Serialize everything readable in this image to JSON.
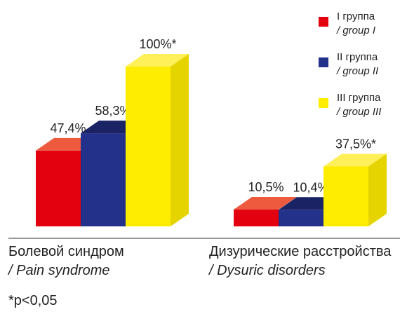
{
  "chart_data": {
    "type": "bar",
    "style": "3d",
    "categories": [
      {
        "ru": "Болевой синдром",
        "en": "/ Pain syndrome"
      },
      {
        "ru": "Дизурические расстройства",
        "en": "/ Dysuric disorders"
      }
    ],
    "series": [
      {
        "name_ru": "I группа",
        "name_en": "/ group I",
        "values": [
          47.4,
          10.5
        ],
        "labels": [
          "47,4%",
          "10,5%"
        ],
        "color": "#e3000f",
        "top": "#ee5a3e",
        "side": "#b3000b"
      },
      {
        "name_ru": "II группа",
        "name_en": "/ group II",
        "values": [
          58.3,
          10.4
        ],
        "labels": [
          "58,3%",
          "10,4%"
        ],
        "color": "#23318a",
        "top": "#1a2364",
        "side": "#182268"
      },
      {
        "name_ru": "III группа",
        "name_en": "/ group III",
        "values": [
          100,
          37.5
        ],
        "labels": [
          "100%*",
          "37,5%*"
        ],
        "color": "#ffed00",
        "top": "#fff05a",
        "side": "#e6d400"
      }
    ],
    "ylim": [
      0,
      100
    ],
    "legend_position": "top-right",
    "grid": false,
    "footnote": "*p<0,05"
  }
}
